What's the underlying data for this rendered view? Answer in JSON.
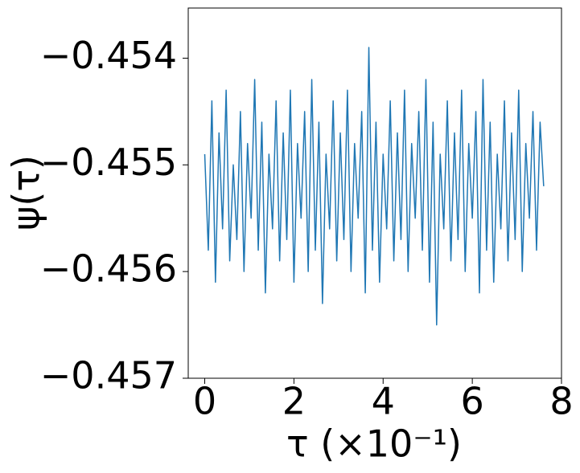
{
  "chart_data": {
    "type": "line",
    "xlabel": "τ (×10⁻¹)",
    "ylabel": "ψ(τ)",
    "x": [
      0,
      0.08,
      0.16,
      0.24,
      0.32,
      0.4,
      0.48,
      0.56,
      0.64,
      0.72,
      0.8,
      0.88,
      0.96,
      1.04,
      1.12,
      1.2,
      1.28,
      1.36,
      1.44,
      1.52,
      1.6,
      1.68,
      1.76,
      1.84,
      1.92,
      2.0,
      2.08,
      2.16,
      2.24,
      2.32,
      2.4,
      2.48,
      2.56,
      2.64,
      2.72,
      2.8,
      2.88,
      2.96,
      3.04,
      3.12,
      3.2,
      3.28,
      3.36,
      3.44,
      3.52,
      3.6,
      3.68,
      3.76,
      3.84,
      3.92,
      4.0,
      4.08,
      4.16,
      4.24,
      4.32,
      4.4,
      4.48,
      4.56,
      4.64,
      4.72,
      4.8,
      4.88,
      4.96,
      5.04,
      5.12,
      5.2,
      5.28,
      5.36,
      5.44,
      5.52,
      5.6,
      5.68,
      5.76,
      5.84,
      5.92,
      6.0,
      6.08,
      6.16,
      6.24,
      6.32,
      6.4,
      6.48,
      6.56,
      6.64,
      6.72,
      6.8,
      6.88,
      6.96,
      7.04,
      7.12,
      7.2,
      7.28,
      7.36,
      7.44,
      7.52,
      7.6
    ],
    "values": [
      -0.4549,
      -0.4558,
      -0.4544,
      -0.4561,
      -0.4547,
      -0.4556,
      -0.4543,
      -0.4559,
      -0.455,
      -0.4557,
      -0.4545,
      -0.456,
      -0.4548,
      -0.4555,
      -0.4542,
      -0.4558,
      -0.4546,
      -0.4562,
      -0.4549,
      -0.4556,
      -0.4544,
      -0.4559,
      -0.4547,
      -0.4557,
      -0.4543,
      -0.4561,
      -0.4548,
      -0.4555,
      -0.4545,
      -0.456,
      -0.4542,
      -0.4558,
      -0.4546,
      -0.4563,
      -0.4549,
      -0.4556,
      -0.4544,
      -0.4559,
      -0.4547,
      -0.4557,
      -0.4543,
      -0.456,
      -0.4548,
      -0.4555,
      -0.4545,
      -0.4562,
      -0.4539,
      -0.4558,
      -0.4546,
      -0.4561,
      -0.4549,
      -0.4556,
      -0.4544,
      -0.4559,
      -0.4547,
      -0.4557,
      -0.4543,
      -0.456,
      -0.4548,
      -0.4555,
      -0.4545,
      -0.4558,
      -0.4542,
      -0.4561,
      -0.4546,
      -0.4565,
      -0.4549,
      -0.4556,
      -0.4544,
      -0.4559,
      -0.4547,
      -0.4557,
      -0.4543,
      -0.456,
      -0.4548,
      -0.4555,
      -0.4545,
      -0.4562,
      -0.4542,
      -0.4558,
      -0.4546,
      -0.4561,
      -0.4549,
      -0.4556,
      -0.4544,
      -0.4559,
      -0.4547,
      -0.4557,
      -0.4543,
      -0.456,
      -0.4548,
      -0.4555,
      -0.4545,
      -0.4558,
      -0.4546,
      -0.4552
    ],
    "color": "#1f77b4",
    "xlim": [
      -0.37,
      8.0
    ],
    "xticks": [
      0,
      2,
      4,
      6,
      8
    ],
    "ylim": [
      -0.457,
      -0.45353
    ],
    "yticks": [
      {
        "value": -0.457,
        "label": "−0.457"
      },
      {
        "value": -0.456,
        "label": "−0.456"
      },
      {
        "value": -0.455,
        "label": "−0.455"
      },
      {
        "value": -0.454,
        "label": "−0.454"
      }
    ]
  }
}
